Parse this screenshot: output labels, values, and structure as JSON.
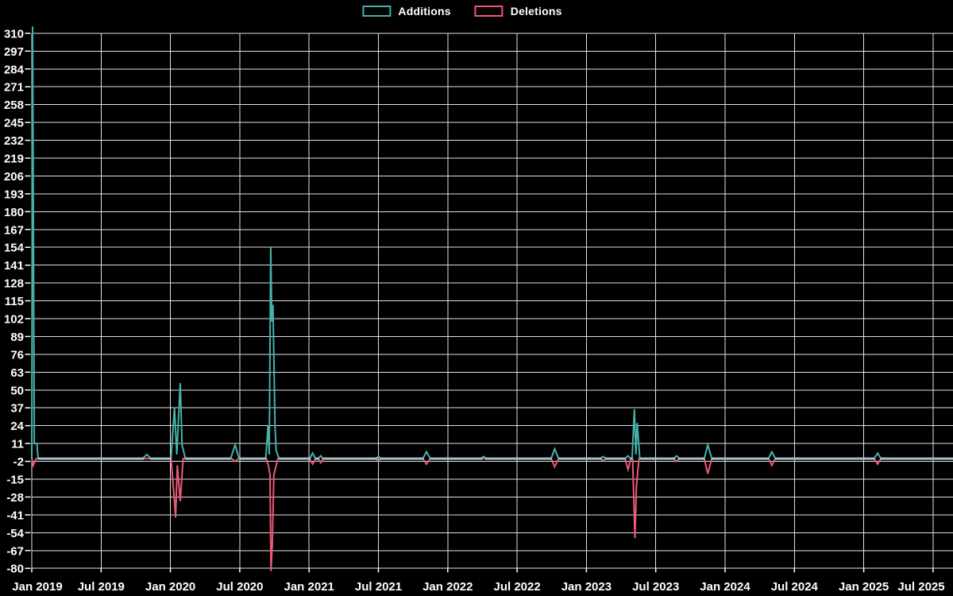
{
  "legend": [
    {
      "label": "Additions",
      "color": "#46b2ac"
    },
    {
      "label": "Deletions",
      "color": "#ef5876"
    }
  ],
  "colors": {
    "background": "#000000",
    "grid": "#e2e2e2",
    "axis_text": "#ffffff",
    "additions": "#46b2ac",
    "deletions": "#ef5876",
    "zero_baseline_blend": "#a7bfc8"
  },
  "chart_data": {
    "type": "line",
    "title": "",
    "xlabel": "",
    "ylabel": "",
    "legend_position": "top-center",
    "grid": true,
    "x_unit": "months since Jan 2019",
    "x_range": [
      0,
      79.8
    ],
    "ylim": [
      -80,
      310
    ],
    "y_tick_step": 13,
    "y_ticks": [
      310,
      297,
      284,
      271,
      258,
      245,
      232,
      219,
      206,
      193,
      180,
      167,
      154,
      141,
      128,
      115,
      102,
      89,
      76,
      63,
      50,
      37,
      24,
      11,
      -2,
      -15,
      -28,
      -41,
      -54,
      -67,
      -80
    ],
    "x_tick_labels": [
      "Jan 2019",
      "Jul 2019",
      "Jan 2020",
      "Jul 2020",
      "Jan 2021",
      "Jul 2021",
      "Jan 2022",
      "Jul 2022",
      "Jan 2023",
      "Jul 2023",
      "Jan 2024",
      "Jul 2024",
      "Jan 2025",
      "Jul 2025"
    ],
    "series": [
      {
        "name": "Additions",
        "color": "#46b2ac",
        "points": [
          [
            0,
            0
          ],
          [
            0.07,
            315
          ],
          [
            0.22,
            11
          ],
          [
            0.45,
            11
          ],
          [
            0.55,
            0
          ],
          [
            9.6,
            0
          ],
          [
            9.95,
            3
          ],
          [
            10.3,
            0
          ],
          [
            12.05,
            0
          ],
          [
            12.35,
            37
          ],
          [
            12.55,
            3
          ],
          [
            12.85,
            55
          ],
          [
            13.0,
            10
          ],
          [
            13.3,
            0
          ],
          [
            17.2,
            0
          ],
          [
            17.6,
            10
          ],
          [
            17.95,
            0
          ],
          [
            20.25,
            0
          ],
          [
            20.45,
            24
          ],
          [
            20.55,
            3
          ],
          [
            20.68,
            154
          ],
          [
            20.78,
            100
          ],
          [
            20.87,
            112
          ],
          [
            21.05,
            24
          ],
          [
            21.15,
            6
          ],
          [
            21.4,
            0
          ],
          [
            24.05,
            0
          ],
          [
            24.3,
            4
          ],
          [
            24.55,
            0
          ],
          [
            24.8,
            0
          ],
          [
            25.0,
            2
          ],
          [
            25.2,
            0
          ],
          [
            29.75,
            0
          ],
          [
            30.0,
            1.5
          ],
          [
            30.25,
            0
          ],
          [
            33.85,
            0
          ],
          [
            34.15,
            5
          ],
          [
            34.5,
            0
          ],
          [
            38.85,
            0
          ],
          [
            39.1,
            1.5
          ],
          [
            39.35,
            0
          ],
          [
            44.95,
            0
          ],
          [
            45.25,
            7
          ],
          [
            45.6,
            0
          ],
          [
            49.2,
            0
          ],
          [
            49.45,
            1.5
          ],
          [
            49.7,
            0
          ],
          [
            51.35,
            0
          ],
          [
            51.6,
            2
          ],
          [
            51.8,
            0
          ],
          [
            51.95,
            0
          ],
          [
            52.15,
            36
          ],
          [
            52.28,
            3
          ],
          [
            52.4,
            26
          ],
          [
            52.62,
            0
          ],
          [
            55.55,
            0
          ],
          [
            55.8,
            2
          ],
          [
            56.05,
            0
          ],
          [
            58.2,
            0
          ],
          [
            58.5,
            10
          ],
          [
            58.85,
            0
          ],
          [
            63.75,
            0
          ],
          [
            64.05,
            5
          ],
          [
            64.35,
            0
          ],
          [
            72.9,
            0
          ],
          [
            73.2,
            4
          ],
          [
            73.5,
            0
          ],
          [
            79.8,
            0
          ]
        ]
      },
      {
        "name": "Deletions",
        "color": "#ef5876",
        "points": [
          [
            0,
            0
          ],
          [
            0.12,
            -5
          ],
          [
            0.4,
            0
          ],
          [
            12.05,
            0
          ],
          [
            12.3,
            -26
          ],
          [
            12.45,
            -43
          ],
          [
            12.6,
            -5
          ],
          [
            12.85,
            -31
          ],
          [
            13.1,
            0
          ],
          [
            17.3,
            0
          ],
          [
            17.6,
            -2
          ],
          [
            17.9,
            0
          ],
          [
            20.3,
            0
          ],
          [
            20.5,
            -6
          ],
          [
            20.62,
            -12
          ],
          [
            20.7,
            -82
          ],
          [
            20.82,
            -62
          ],
          [
            20.95,
            -12
          ],
          [
            21.3,
            0
          ],
          [
            24.05,
            0
          ],
          [
            24.3,
            -4
          ],
          [
            24.55,
            0
          ],
          [
            24.8,
            0
          ],
          [
            25.0,
            -3
          ],
          [
            25.2,
            0
          ],
          [
            29.75,
            0
          ],
          [
            30.0,
            -1.5
          ],
          [
            30.25,
            0
          ],
          [
            33.85,
            0
          ],
          [
            34.15,
            -4
          ],
          [
            34.5,
            0
          ],
          [
            44.95,
            0
          ],
          [
            45.25,
            -6
          ],
          [
            45.6,
            0
          ],
          [
            49.2,
            0
          ],
          [
            49.45,
            -1.5
          ],
          [
            49.7,
            0
          ],
          [
            51.35,
            0
          ],
          [
            51.6,
            -8
          ],
          [
            51.85,
            0
          ],
          [
            52.0,
            0
          ],
          [
            52.2,
            -58
          ],
          [
            52.33,
            -20
          ],
          [
            52.55,
            0
          ],
          [
            55.55,
            0
          ],
          [
            55.8,
            -2
          ],
          [
            56.05,
            0
          ],
          [
            58.2,
            0
          ],
          [
            58.5,
            -11
          ],
          [
            58.85,
            0
          ],
          [
            63.75,
            0
          ],
          [
            64.05,
            -5
          ],
          [
            64.35,
            0
          ],
          [
            72.9,
            0
          ],
          [
            73.2,
            -4
          ],
          [
            73.5,
            0
          ],
          [
            79.8,
            0
          ]
        ]
      }
    ]
  }
}
